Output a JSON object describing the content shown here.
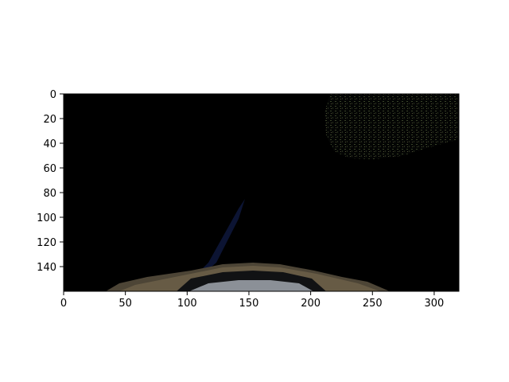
{
  "chart_data": {
    "type": "image",
    "xlim": [
      0,
      320
    ],
    "ylim": [
      160,
      0
    ],
    "x_ticks": [
      0,
      50,
      100,
      150,
      200,
      250,
      300
    ],
    "y_ticks": [
      0,
      20,
      40,
      60,
      80,
      100,
      120,
      140
    ],
    "x_tick_labels": [
      "0",
      "50",
      "100",
      "150",
      "200",
      "250",
      "300"
    ],
    "y_tick_labels": [
      "0",
      "20",
      "40",
      "60",
      "80",
      "100",
      "120",
      "140"
    ],
    "grid": false,
    "colors": {
      "image_background": "#000000",
      "foliage": "#3f4a2c",
      "dashboard_outer": "#4d4536",
      "dashboard_inner": "#8b9097",
      "dashboard_dark": "#111214",
      "dark_blue_streak": "#0d1638"
    }
  }
}
